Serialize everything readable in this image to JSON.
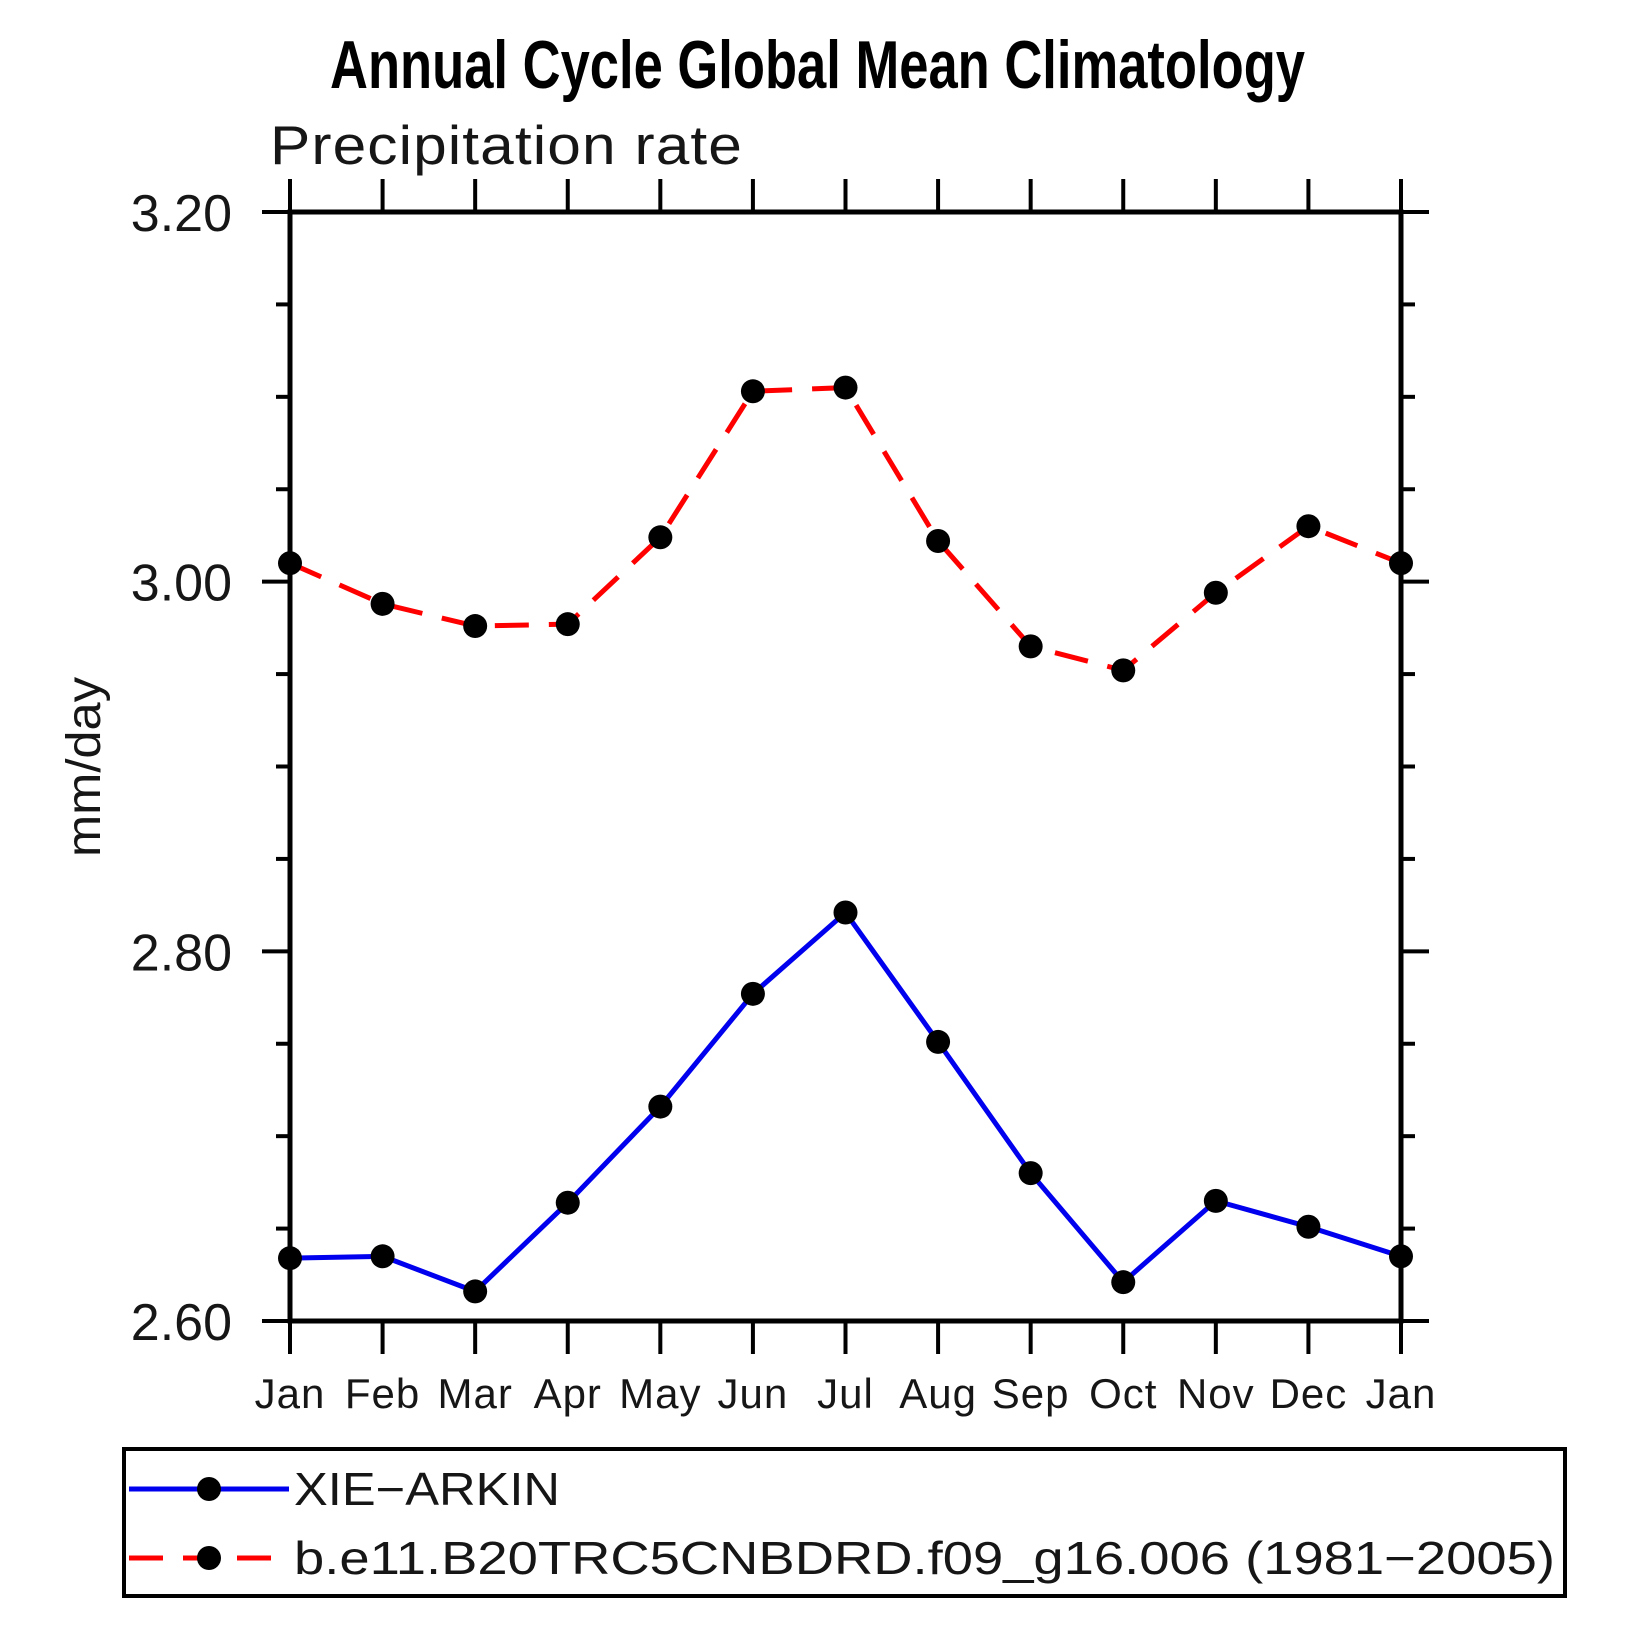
{
  "page": {
    "background": "#ffffff",
    "ink": "#000000"
  },
  "chart_data": {
    "type": "line",
    "title": "Annual Cycle Global Mean Climatology",
    "subtitle": "Precipitation rate",
    "ylabel": "mm/day",
    "xlabel": "",
    "x_tick_labels": [
      "Jan",
      "Feb",
      "Mar",
      "Apr",
      "May",
      "Jun",
      "Jul",
      "Aug",
      "Sep",
      "Oct",
      "Nov",
      "Dec",
      "Jan"
    ],
    "y_ticks": [
      2.6,
      2.8,
      3.0,
      3.2
    ],
    "y_tick_labels": [
      "2.60",
      "2.80",
      "3.00",
      "3.20"
    ],
    "y_minor_step": 0.05,
    "ylim": [
      2.6,
      3.2
    ],
    "grid": false,
    "legend_position": "bottom-left-box",
    "marker": "filled-circle",
    "marker_color": "#000000",
    "series": [
      {
        "name": "XIE−ARKIN",
        "color": "#0000ee",
        "style": "solid",
        "values": [
          2.634,
          2.635,
          2.616,
          2.664,
          2.716,
          2.777,
          2.821,
          2.751,
          2.68,
          2.621,
          2.665,
          2.651,
          2.635
        ]
      },
      {
        "name": "b.e11.B20TRC5CNBDRD.f09_g16.006 (1981−2005)",
        "color": "#ff0000",
        "style": "dashed",
        "values": [
          3.01,
          2.988,
          2.976,
          2.977,
          3.024,
          3.103,
          3.105,
          3.022,
          2.965,
          2.952,
          2.994,
          3.03,
          3.01
        ]
      }
    ]
  }
}
